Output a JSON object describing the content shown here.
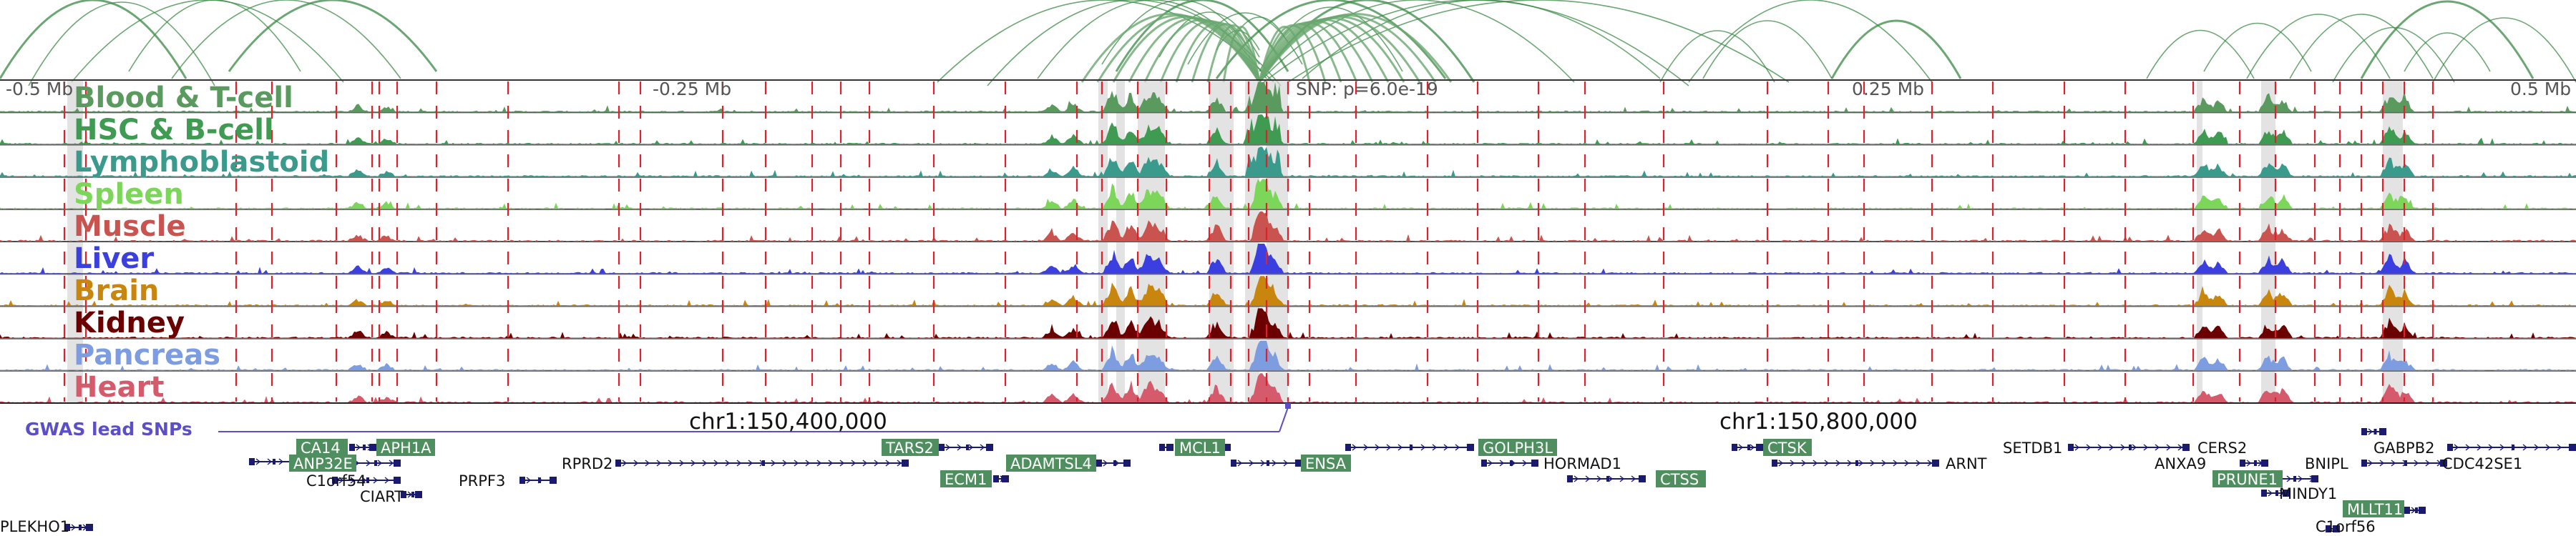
{
  "scale": {
    "left": "-0.5 Mb",
    "mid_left": "-0.25 Mb",
    "center": "SNP: p=6.0e-19",
    "mid_right": "0.25 Mb",
    "right": "0.5 Mb"
  },
  "tracks": [
    {
      "label": "Blood & T-cell",
      "color": "#5a9a5e"
    },
    {
      "label": "HSC & B-cell",
      "color": "#3f9b52"
    },
    {
      "label": "Lymphoblastoid",
      "color": "#3a9b8c"
    },
    {
      "label": "Spleen",
      "color": "#7bd65a"
    },
    {
      "label": "Muscle",
      "color": "#c9544f"
    },
    {
      "label": "Liver",
      "color": "#3b3fe0"
    },
    {
      "label": "Brain",
      "color": "#c8860e"
    },
    {
      "label": "Kidney",
      "color": "#6b0000"
    },
    {
      "label": "Pancreas",
      "color": "#7e9de0"
    },
    {
      "label": "Heart",
      "color": "#d45a6c"
    }
  ],
  "gwas": {
    "label": "GWAS lead SNPs",
    "color": "#5a4fc8"
  },
  "coordinates": {
    "left": "chr1:150,400,000",
    "right": "chr1:150,800,000"
  },
  "genes": [
    {
      "name": "CA14",
      "boxed": true
    },
    {
      "name": "APH1A",
      "boxed": true
    },
    {
      "name": "ANP32E",
      "boxed": true
    },
    {
      "name": "C1orf54",
      "boxed": false
    },
    {
      "name": "CIART",
      "boxed": false
    },
    {
      "name": "PRPF3",
      "boxed": false
    },
    {
      "name": "RPRD2",
      "boxed": false
    },
    {
      "name": "TARS2",
      "boxed": true
    },
    {
      "name": "ECM1",
      "boxed": true
    },
    {
      "name": "ADAMTSL4",
      "boxed": true
    },
    {
      "name": "MCL1",
      "boxed": true
    },
    {
      "name": "ENSA",
      "boxed": true
    },
    {
      "name": "GOLPH3L",
      "boxed": true
    },
    {
      "name": "HORMAD1",
      "boxed": false
    },
    {
      "name": "CTSS",
      "boxed": true
    },
    {
      "name": "CTSK",
      "boxed": true
    },
    {
      "name": "ARNT",
      "boxed": false
    },
    {
      "name": "SETDB1",
      "boxed": false
    },
    {
      "name": "CERS2",
      "boxed": false
    },
    {
      "name": "ANXA9",
      "boxed": false
    },
    {
      "name": "PRUNE1",
      "boxed": true
    },
    {
      "name": "BNIPL",
      "boxed": false
    },
    {
      "name": "MINDY1",
      "boxed": false
    },
    {
      "name": "GABPB2",
      "boxed": false
    },
    {
      "name": "C1orf56",
      "boxed": false
    },
    {
      "name": "CDC42SE1",
      "boxed": false
    },
    {
      "name": "MLLT11",
      "boxed": true
    },
    {
      "name": "PLEKHO1",
      "boxed": false
    }
  ],
  "colors": {
    "gene_box": "#4f8f5f",
    "gene_line": "#1a1a6e",
    "peak_line": "#e0202a",
    "highlight": "#d7d7d7",
    "arc": "#3a8a44"
  }
}
